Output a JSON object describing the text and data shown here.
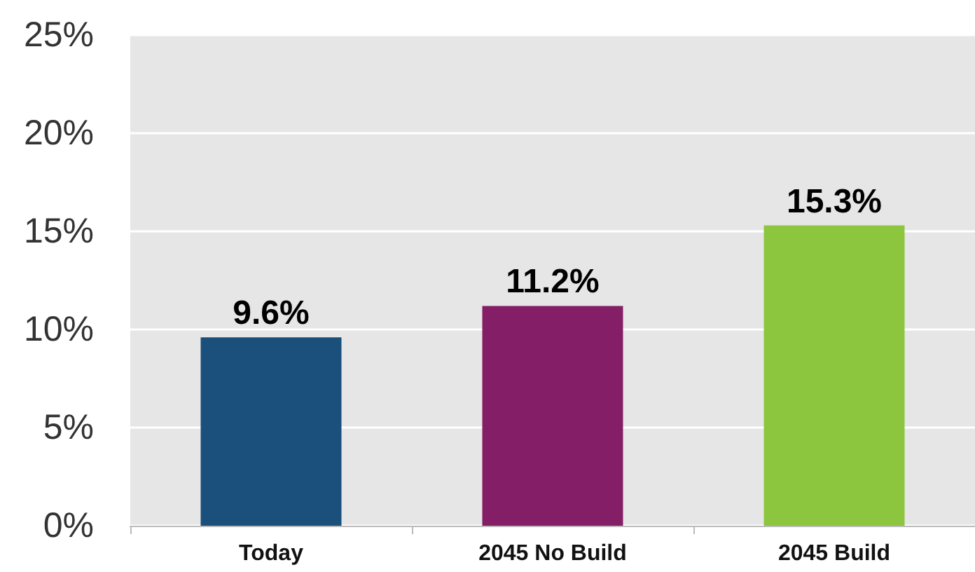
{
  "chart_data": {
    "type": "bar",
    "categories": [
      "Today",
      "2045 No Build",
      "2045 Build"
    ],
    "values": [
      9.6,
      11.2,
      15.3
    ],
    "colors": [
      "#1b4f7c",
      "#841f67",
      "#8cc63f"
    ],
    "value_labels": [
      "9.6%",
      "11.2%",
      "15.3%"
    ],
    "ylim": [
      0,
      25
    ],
    "yticks": [
      {
        "value": 0,
        "label": "0%"
      },
      {
        "value": 5,
        "label": "5%"
      },
      {
        "value": 10,
        "label": "10%"
      },
      {
        "value": 15,
        "label": "15%"
      },
      {
        "value": 20,
        "label": "20%"
      },
      {
        "value": 25,
        "label": "25%"
      }
    ],
    "grid": "y"
  }
}
